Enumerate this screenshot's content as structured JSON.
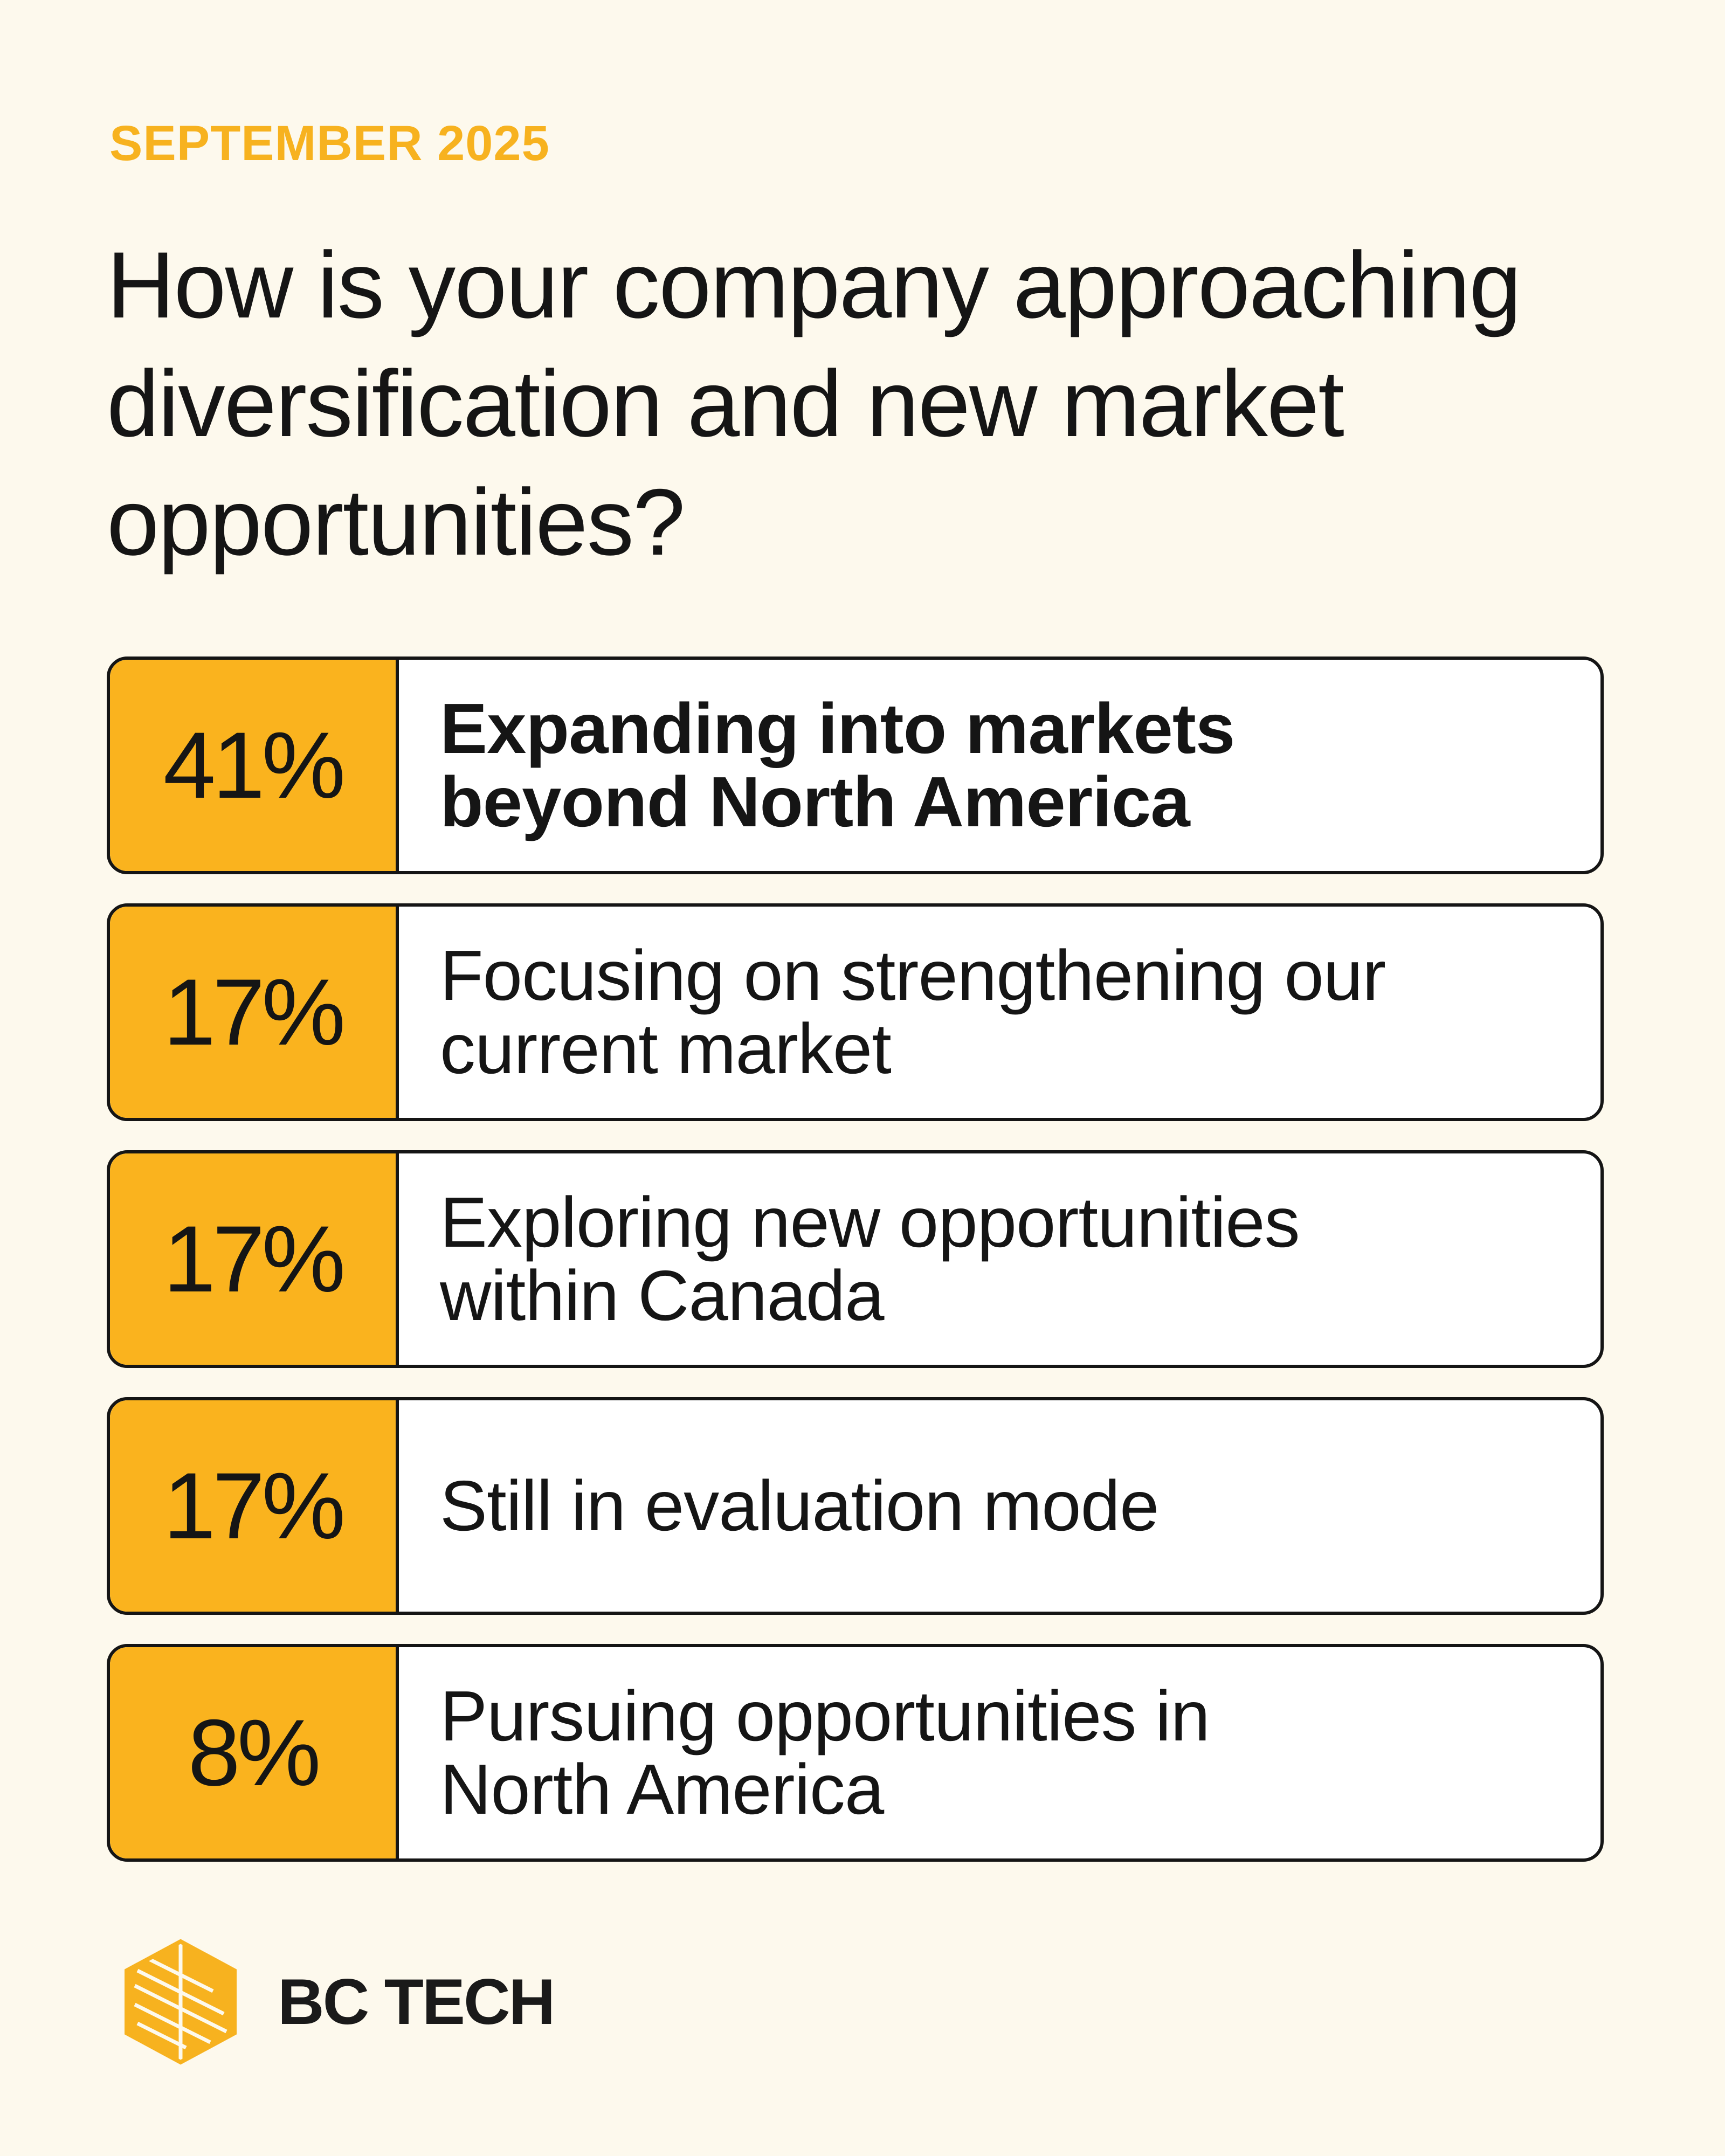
{
  "header": {
    "date": "SEPTEMBER 2025",
    "question": "How is your company approaching diversification and new market opportunities?"
  },
  "results": [
    {
      "percent": "41%",
      "label": "Expanding into markets beyond North America",
      "highlight": true
    },
    {
      "percent": "17%",
      "label": "Focusing on strengthening our current market",
      "highlight": false
    },
    {
      "percent": "17%",
      "label": "Exploring new opportunities within Canada",
      "highlight": false
    },
    {
      "percent": "17%",
      "label": "Still in evaluation mode",
      "highlight": false
    },
    {
      "percent": "8%",
      "label": "Pursuing opportunities in North America",
      "highlight": false
    }
  ],
  "brand": {
    "name": "BC TECH",
    "logo_icon": "bc-tech-hexagon-logo-icon"
  },
  "colors": {
    "background": "#fdf9ed",
    "accent": "#fab31e",
    "date_text": "#f7b21f",
    "text": "#151515"
  }
}
